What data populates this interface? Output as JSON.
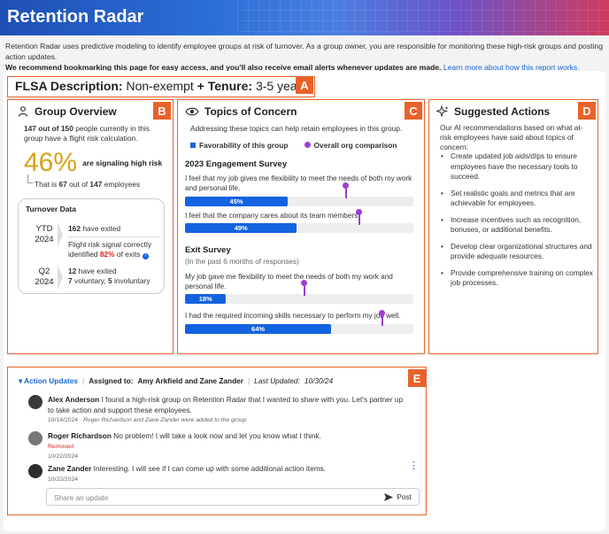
{
  "header": {
    "title": "Retention Radar"
  },
  "intro": {
    "line1": "Retention Radar uses predictive modeling to identify employee groups at risk of turnover. As a group owner, you are responsible for monitoring these high-risk groups and posting action updates.",
    "line2": "We recommend bookmarking this page for easy access, and you'll also receive email alerts whenever updates are made.",
    "link": "Learn more about how this report works."
  },
  "group_title": {
    "label1": "FLSA Description:",
    "value1": "Non-exempt",
    "plus": "+",
    "label2": "Tenure:",
    "value2": "3-5 years",
    "tag": "A"
  },
  "overview": {
    "tag": "B",
    "title": "Group Overview",
    "count_a": "147 out of 150",
    "count_text": "people currently in this group have a flight risk calculation.",
    "percent": "46%",
    "percent_label": "are signaling high risk",
    "that_is": "That is",
    "n": "67",
    "out_of": "out of",
    "total": "147",
    "employees": "employees",
    "turnover_title": "Turnover Data",
    "ytd_label": "YTD",
    "ytd_year": "2024",
    "ytd_exited_n": "162",
    "ytd_exited": "have exited",
    "ytd_signal_text": "Flight risk signal correctly identified",
    "ytd_pct": "82%",
    "ytd_of_exits": "of exits",
    "q2_label": "Q2",
    "q2_year": "2024",
    "q2_exited_n": "12",
    "q2_exited": "have exited",
    "q2_vol_n": "7",
    "q2_vol": "voluntary,",
    "q2_invol_n": "5",
    "q2_invol": "involuntary"
  },
  "concern": {
    "tag": "C",
    "title": "Topics of Concern",
    "subtitle": "Addressing these topics can help retain employees in this group.",
    "legend_group": "Favorability of this group",
    "legend_org": "Overall org comparison",
    "survey1": "2023 Engagement Survey",
    "q1": "I feel that my job gives me flexibility to meet the needs of both my work and personal life.",
    "q1_val": "45%",
    "q2": "I feel that the company cares about its team members.",
    "q2_val": "49%",
    "survey2": "Exit Survey",
    "survey2_sub": "(In the past 6 months of responses)",
    "q3": "My job gave me flexibility to meet the needs of both my work and personal life.",
    "q3_val": "18%",
    "q4": "I had the required incoming skills necessary to perform my job well.",
    "q4_val": "64%"
  },
  "bars": {
    "q1": {
      "group": 45,
      "org": 70
    },
    "q2": {
      "group": 49,
      "org": 76
    },
    "q3": {
      "group": 18,
      "org": 52
    },
    "q4": {
      "group": 64,
      "org": 86
    }
  },
  "suggested": {
    "tag": "D",
    "title": "Suggested Actions",
    "intro": "Our AI recommendations based on what at-risk employees have said about topics of concern:",
    "items": [
      "Create updated job aids/dIps to ensure employees have the necessary tools to succeed.",
      "Set realistic goals and metrics that are achievable for employees.",
      "Increase incentives such as recognition, bonuses, or additional benefits.",
      "Develop clear organizational structures and provide adequate resources.",
      "Provide comprehensive training on complex job processes."
    ]
  },
  "updates": {
    "tag": "E",
    "title": "Action Updates",
    "assigned_label": "Assigned to:",
    "assigned": "Amy Arkfield and Zane Zander",
    "last_label": "Last Updated:",
    "last": "10/30/24",
    "messages": [
      {
        "name": "Alex Anderson",
        "text": "I found a high-risk group on Retention Radar that I wanted to share with you. Let's partner up to take action and support these employees.",
        "date": "10/14/2024",
        "note": "Roger Richardson and Zane Zander were added to the group"
      },
      {
        "name": "Roger Richardson",
        "text": "No problem! I will take a look now and let you know what I think.",
        "status": "Removed",
        "date": "10/22/2024"
      },
      {
        "name": "Zane Zander",
        "text": "Interesting.  I will see if I can come up with some additional action items.",
        "date": "10/22/2024"
      }
    ],
    "placeholder": "Share an update",
    "post": "Post"
  },
  "colors": {
    "accent": "#e8622a",
    "bar": "#1363e0",
    "org": "#9b3fd0",
    "percent": "#d4a316"
  }
}
